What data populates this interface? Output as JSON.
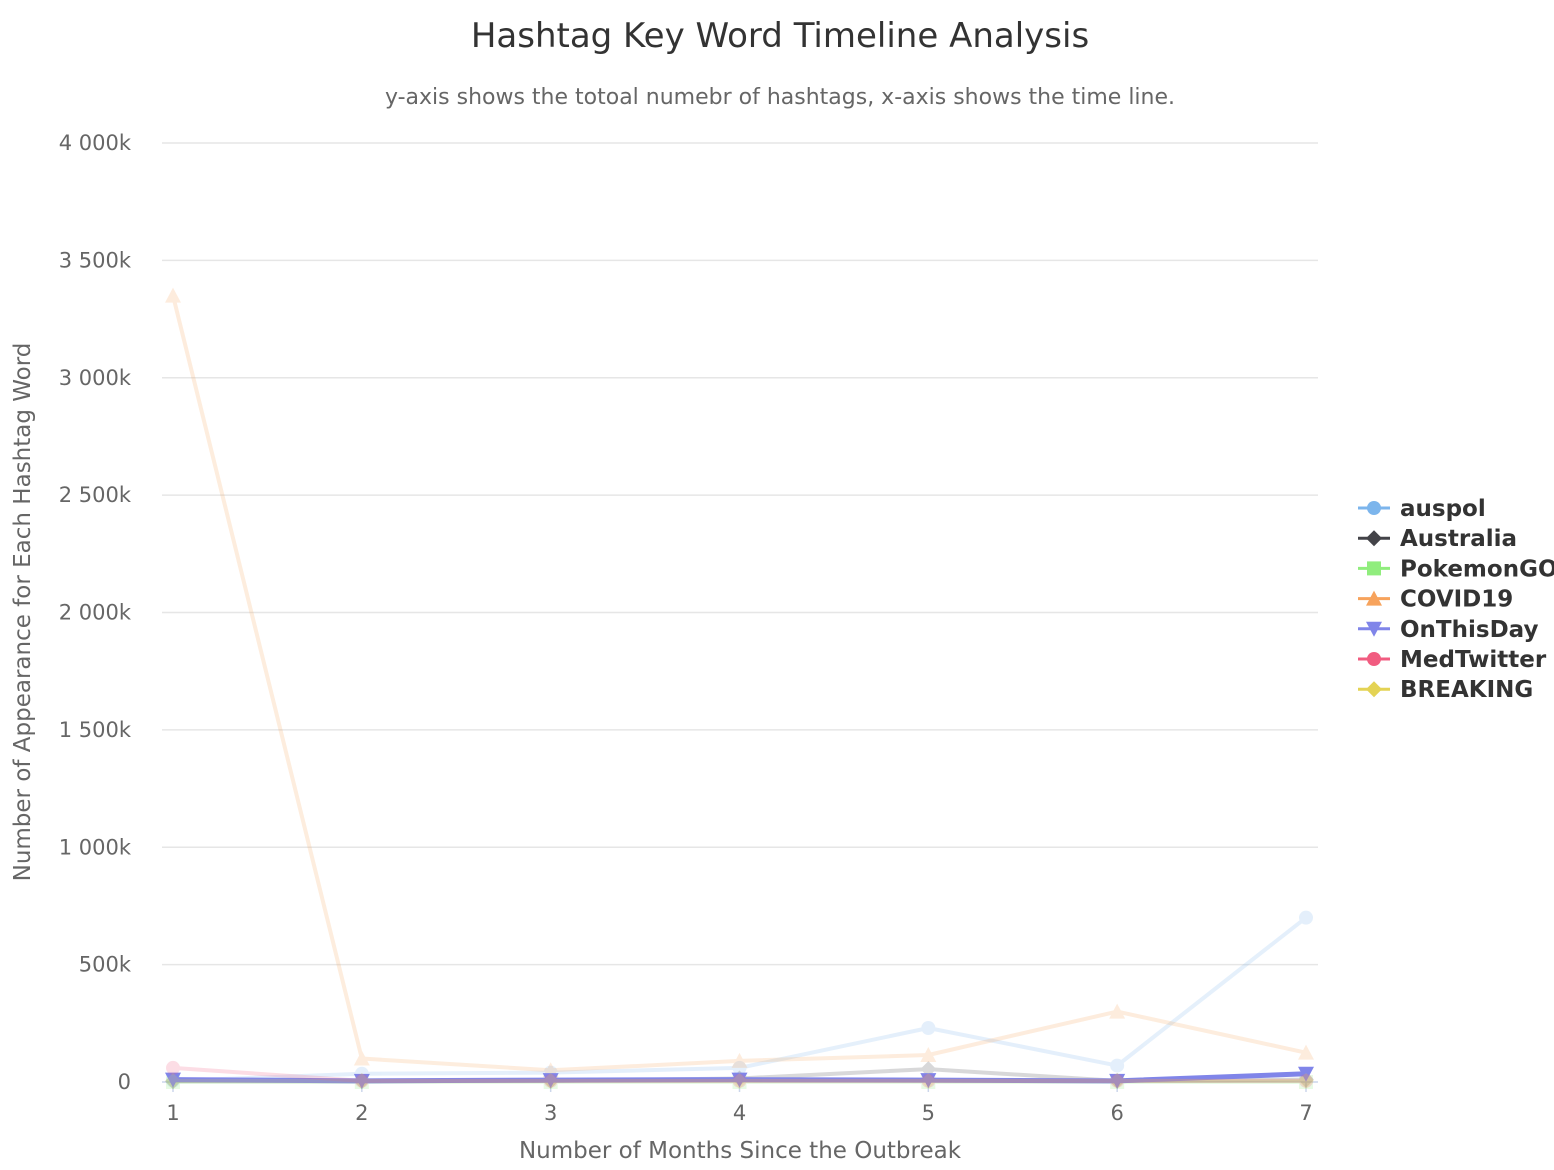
{
  "chart_data": {
    "type": "line",
    "title": "Hashtag Key Word Timeline Analysis",
    "subtitle": "y-axis shows the totoal numebr of hashtags, x-axis shows the time line.",
    "xlabel": "Number of Months Since the Outbreak",
    "ylabel": "Number of Appearance for Each Hashtag Word",
    "x": [
      1,
      2,
      3,
      4,
      5,
      6,
      7
    ],
    "ylim": [
      0,
      4000000
    ],
    "yticks": [
      0,
      500000,
      1000000,
      1500000,
      2000000,
      2500000,
      3000000,
      3500000,
      4000000
    ],
    "ytick_labels": [
      "0",
      "500k",
      "1 000k",
      "1 500k",
      "2 000k",
      "2 500k",
      "3 000k",
      "3 500k",
      "4 000k"
    ],
    "xtick_labels": [
      "1",
      "2",
      "3",
      "4",
      "5",
      "6",
      "7"
    ],
    "grid": true,
    "legend_position": "right",
    "highlighted_series": "OnThisDay",
    "series": [
      {
        "name": "auspol",
        "color": "#7cb5ec",
        "marker": "circle",
        "values": [
          5000,
          35000,
          40000,
          60000,
          230000,
          70000,
          700000
        ]
      },
      {
        "name": "Australia",
        "color": "#434348",
        "marker": "diamond",
        "values": [
          3000,
          3000,
          5000,
          15000,
          55000,
          5000,
          10000
        ]
      },
      {
        "name": "PokemonGO",
        "color": "#90ed7d",
        "marker": "square",
        "values": [
          0,
          0,
          0,
          0,
          0,
          0,
          0
        ]
      },
      {
        "name": "COVID19",
        "color": "#f7a35c",
        "marker": "triangle",
        "values": [
          3350000,
          100000,
          50000,
          90000,
          115000,
          300000,
          125000
        ]
      },
      {
        "name": "OnThisDay",
        "color": "#8085e9",
        "marker": "triangle-down",
        "values": [
          10000,
          5000,
          8000,
          10000,
          8000,
          5000,
          35000
        ]
      },
      {
        "name": "MedTwitter",
        "color": "#f15c80",
        "marker": "circle",
        "values": [
          60000,
          5000,
          5000,
          5000,
          5000,
          5000,
          5000
        ]
      },
      {
        "name": "BREAKING",
        "color": "#e4d354",
        "marker": "diamond",
        "values": [
          5000,
          5000,
          5000,
          5000,
          5000,
          5000,
          5000
        ]
      }
    ]
  }
}
